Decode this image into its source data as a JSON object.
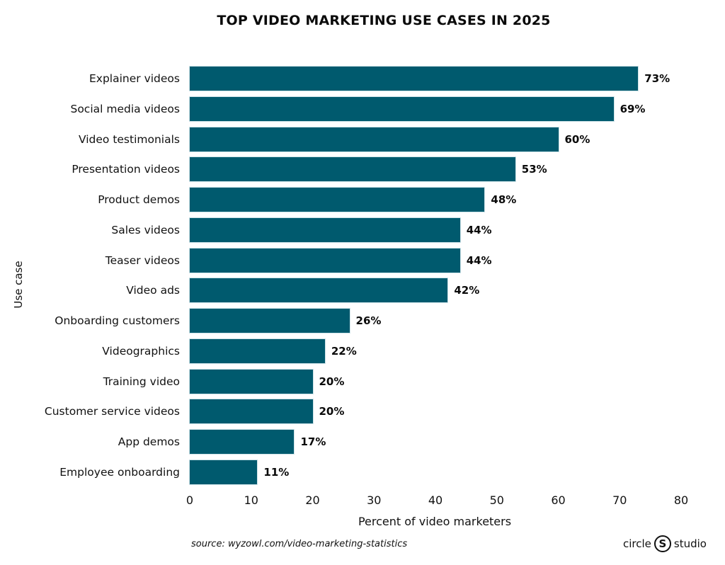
{
  "title": "TOP VIDEO MARKETING USE CASES IN 2025",
  "y_axis_label": "Use case",
  "x_axis_label": "Percent of video marketers",
  "x_ticks": [
    "0",
    "10",
    "20",
    "30",
    "40",
    "50",
    "60",
    "70",
    "80"
  ],
  "source": "source: wyzowl.com/video-marketing-statistics",
  "brand": {
    "left": "circle",
    "logo": "S",
    "right": "studio"
  },
  "colors": {
    "bar": "#005a6e"
  },
  "bars": [
    {
      "label": "Explainer videos",
      "value": 73,
      "text": "73%"
    },
    {
      "label": "Social media videos",
      "value": 69,
      "text": "69%"
    },
    {
      "label": "Video testimonials",
      "value": 60,
      "text": "60%"
    },
    {
      "label": "Presentation videos",
      "value": 53,
      "text": "53%"
    },
    {
      "label": "Product demos",
      "value": 48,
      "text": "48%"
    },
    {
      "label": "Sales videos",
      "value": 44,
      "text": "44%"
    },
    {
      "label": "Teaser videos",
      "value": 44,
      "text": "44%"
    },
    {
      "label": "Video ads",
      "value": 42,
      "text": "42%"
    },
    {
      "label": "Onboarding customers",
      "value": 26,
      "text": "26%"
    },
    {
      "label": "Videographics",
      "value": 22,
      "text": "22%"
    },
    {
      "label": "Training video",
      "value": 20,
      "text": "20%"
    },
    {
      "label": "Customer service videos",
      "value": 20,
      "text": "20%"
    },
    {
      "label": "App demos",
      "value": 17,
      "text": "17%"
    },
    {
      "label": "Employee onboarding",
      "value": 11,
      "text": "11%"
    }
  ],
  "chart_data": {
    "type": "bar",
    "orientation": "horizontal",
    "title": "TOP VIDEO MARKETING USE CASES IN 2025",
    "xlabel": "Percent of video marketers",
    "ylabel": "Use case",
    "xlim": [
      0,
      80
    ],
    "x_ticks": [
      0,
      10,
      20,
      30,
      40,
      50,
      60,
      70,
      80
    ],
    "grid": false,
    "legend": null,
    "categories": [
      "Explainer videos",
      "Social media videos",
      "Video testimonials",
      "Presentation videos",
      "Product demos",
      "Sales videos",
      "Teaser videos",
      "Video ads",
      "Onboarding customers",
      "Videographics",
      "Training video",
      "Customer service videos",
      "App demos",
      "Employee onboarding"
    ],
    "values": [
      73,
      69,
      60,
      53,
      48,
      44,
      44,
      42,
      26,
      22,
      20,
      20,
      17,
      11
    ],
    "data_labels": [
      "73%",
      "69%",
      "60%",
      "53%",
      "48%",
      "44%",
      "44%",
      "42%",
      "26%",
      "22%",
      "20%",
      "20%",
      "17%",
      "11%"
    ],
    "annotations": [
      "source: wyzowl.com/video-marketing-statistics",
      "circle S studio"
    ]
  }
}
